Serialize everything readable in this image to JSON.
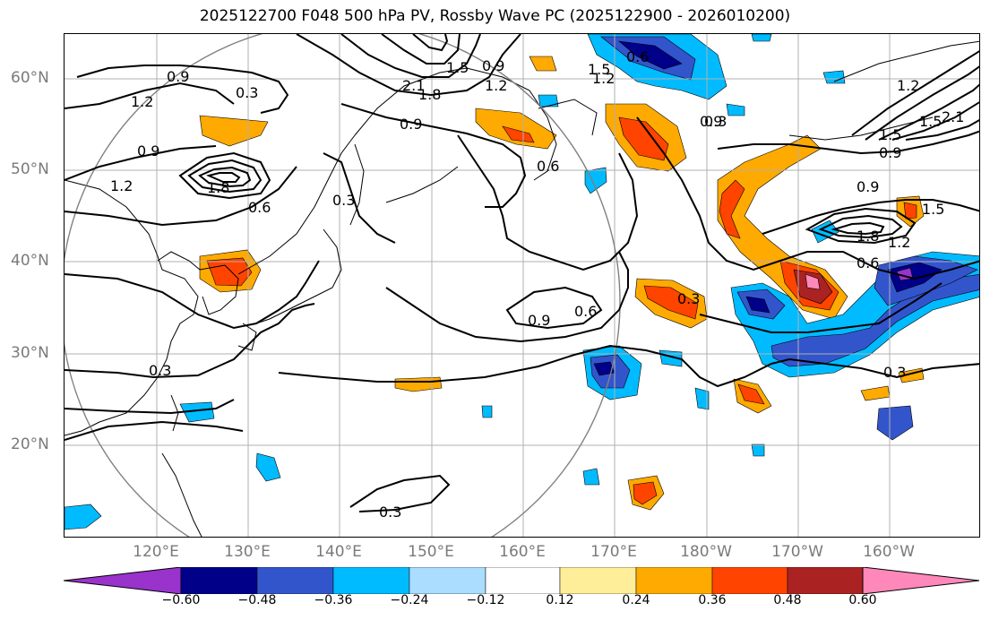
{
  "title": "2025122700 F048 500 hPa PV, Rossby Wave PC (2025122900 - 2026010200)",
  "lat_labels": [
    "60°N",
    "50°N",
    "40°N",
    "30°N",
    "20°N"
  ],
  "lon_labels": [
    "120°E",
    "130°E",
    "140°E",
    "150°E",
    "160°E",
    "170°E",
    "180°W",
    "170°W",
    "160°W"
  ],
  "contour_labels": [
    "0.9",
    "1.2",
    "0.3",
    "2.1",
    "1.8",
    "1.5",
    "0.9",
    "1.2",
    "0.9",
    "0.3",
    "0.9",
    "1.2",
    "1.8",
    "0.6",
    "0.6",
    "0.3",
    "0.9",
    "0.6",
    "0.3",
    "0.3",
    "0.3",
    "0.9",
    "0.6",
    "1.5",
    "1.2",
    "1.5",
    "0.9",
    "0.9",
    "1.5",
    "1.8",
    "1.2",
    "0.6",
    "1.2",
    "1.5",
    "2.1",
    "0.3"
  ],
  "colorbar": {
    "ticks": [
      "−0.60",
      "−0.48",
      "−0.36",
      "−0.24",
      "−0.12",
      "0.12",
      "0.24",
      "0.36",
      "0.48",
      "0.60"
    ],
    "colors": [
      "#9933cc",
      "#000088",
      "#3355cc",
      "#00bbff",
      "#aaddff",
      "#ffffff",
      "#ffee99",
      "#ffaa00",
      "#ff4400",
      "#aa2222",
      "#ff88bb"
    ]
  }
}
